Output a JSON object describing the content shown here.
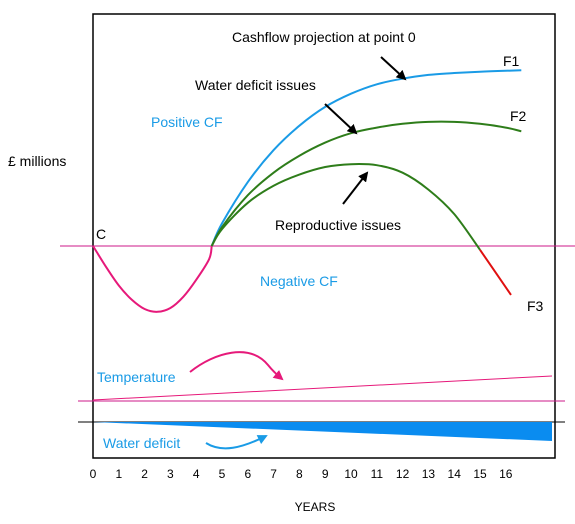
{
  "chart_data": {
    "type": "line",
    "xlabel": "YEARS",
    "ylabel": "£ millions",
    "xlim": [
      0,
      17
    ],
    "x_ticks": [
      "0",
      "1",
      "2",
      "3",
      "4",
      "5",
      "6",
      "7",
      "8",
      "9",
      "10",
      "11",
      "12",
      "13",
      "14",
      "15",
      "16"
    ],
    "ylim": [
      -6,
      10
    ],
    "start_label": "C",
    "region_labels": {
      "positive": "Positive CF",
      "negative": "Negative CF"
    },
    "annotations": {
      "cashflow": "Cashflow projection at point 0",
      "water": "Water deficit issues",
      "reproductive": "Reproductive issues"
    },
    "series": [
      {
        "name": "F1",
        "color": "#1a9be6",
        "x": [
          0,
          0.5,
          1,
          1.5,
          2,
          2.5,
          3,
          3.5,
          4,
          4.5,
          4.6,
          5,
          6,
          7,
          8,
          9,
          10,
          11,
          12,
          13,
          14,
          15,
          16,
          16.6
        ],
        "y": [
          0,
          -1.1,
          -2.1,
          -2.85,
          -3.35,
          -3.5,
          -3.3,
          -2.7,
          -1.8,
          -0.7,
          0,
          1.2,
          3.4,
          5.1,
          6.4,
          7.4,
          8.1,
          8.6,
          8.9,
          9.1,
          9.2,
          9.27,
          9.32,
          9.35
        ]
      },
      {
        "name": "F2",
        "color": "#2e7d1a",
        "x": [
          4.6,
          5,
          6,
          7,
          8,
          9,
          10,
          11,
          12,
          13,
          14,
          15,
          16,
          16.6
        ],
        "y": [
          0,
          1.0,
          2.7,
          3.9,
          4.8,
          5.5,
          6.0,
          6.3,
          6.5,
          6.6,
          6.6,
          6.5,
          6.3,
          6.1
        ]
      },
      {
        "name": "F3",
        "color": "#2e7d1a",
        "end_color": "#e01010",
        "x": [
          4.6,
          5,
          6,
          7,
          8,
          9,
          10,
          11,
          12,
          13,
          14,
          15,
          16.2
        ],
        "y": [
          0,
          0.9,
          2.3,
          3.2,
          3.8,
          4.2,
          4.35,
          4.3,
          3.9,
          3.0,
          1.7,
          -0.2,
          -2.6
        ]
      }
    ],
    "indicators": {
      "temperature": {
        "label": "Temperature",
        "color": "#e6197a",
        "label_color": "#1a9be6"
      },
      "water_deficit": {
        "label": "Water deficit",
        "color": "#0a8cf0",
        "label_color": "#1a9be6"
      }
    },
    "colors": {
      "negative_curve": "#e6197a",
      "zero_line": "#cc1a8a",
      "arrow": "#000000"
    }
  }
}
